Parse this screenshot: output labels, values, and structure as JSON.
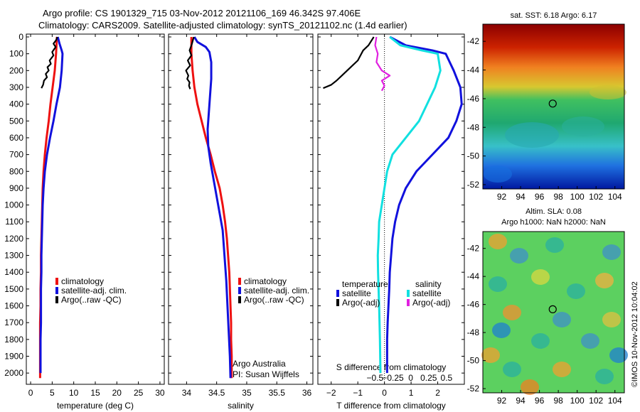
{
  "header": {
    "line1": "Argo profile: CS 1901329_715 03-Nov-2012 20121106_169 46.342S 97.406E",
    "line2": "Climatology: CARS2009. Satellite-adjusted climatology: synTS_20121102.nc (1.4d earlier)"
  },
  "colors": {
    "climatology": "#ee1111",
    "satellite": "#1111dd",
    "argo": "#000000",
    "salinity_satellite": "#11e0e0",
    "salinity_argo": "#e020e0"
  },
  "chart_data": [
    {
      "type": "line",
      "xlabel": "temperature (deg C)",
      "ylabel": "",
      "xlim": [
        -1,
        31
      ],
      "ylim": [
        2050,
        0
      ],
      "x_ticks": [
        0,
        5,
        10,
        15,
        20,
        25,
        30
      ],
      "y_ticks": [
        0,
        100,
        200,
        300,
        400,
        500,
        600,
        700,
        800,
        900,
        1000,
        1100,
        1200,
        1300,
        1400,
        1500,
        1600,
        1700,
        1800,
        1900,
        2000
      ],
      "legend": [
        "climatology",
        "satellite-adj. clim.",
        "Argo(..raw -QC)"
      ],
      "series": [
        {
          "name": "climatology",
          "x": [
            6.1,
            6.0,
            5.9,
            5.6,
            5.1,
            4.6,
            4.2,
            3.7,
            3.3,
            3.0,
            2.8,
            2.7,
            2.6,
            2.5,
            2.4,
            2.4,
            2.3,
            2.3,
            2.2,
            2.2,
            2.2,
            2.2
          ],
          "y": [
            0,
            50,
            100,
            200,
            300,
            400,
            500,
            600,
            700,
            800,
            900,
            1000,
            1100,
            1200,
            1300,
            1400,
            1500,
            1600,
            1700,
            1800,
            1900,
            2030
          ]
        },
        {
          "name": "satellite-adj. clim.",
          "x": [
            6.3,
            6.7,
            7.2,
            7.4,
            7.2,
            6.8,
            6.0,
            5.3,
            4.5,
            3.8,
            3.3,
            3.0,
            2.8,
            2.7,
            2.6,
            2.5,
            2.5,
            2.4,
            2.4,
            2.4,
            2.3,
            2.3,
            2.3
          ],
          "y": [
            0,
            40,
            80,
            100,
            200,
            300,
            400,
            500,
            600,
            700,
            800,
            900,
            1000,
            1100,
            1200,
            1300,
            1400,
            1500,
            1600,
            1700,
            1800,
            1900,
            2000
          ]
        },
        {
          "name": "Argo(..raw -QC)",
          "x": [
            6.2,
            5.9,
            5.3,
            5.8,
            5.0,
            5.3,
            4.4,
            4.7,
            3.9,
            4.2,
            3.5,
            3.8,
            3.1,
            2.9,
            2.5
          ],
          "y": [
            0,
            20,
            40,
            60,
            90,
            110,
            140,
            160,
            180,
            200,
            220,
            240,
            260,
            285,
            305
          ]
        }
      ]
    },
    {
      "type": "line",
      "xlabel": "salinity",
      "ylabel": "",
      "xlim": [
        33.7,
        36.1
      ],
      "ylim": [
        2050,
        0
      ],
      "x_ticks": [
        34,
        34.5,
        35,
        35.5,
        36
      ],
      "x_tick_labels": [
        "34",
        "34.5",
        "35",
        "35.5",
        "36"
      ],
      "legend": [
        "climatology",
        "satellite-adj. clim.",
        "Argo(..raw -QC)"
      ],
      "annotation": [
        "Argo Australia",
        "PI: Susan Wijffels"
      ],
      "series": [
        {
          "name": "climatology",
          "x": [
            34.08,
            34.08,
            34.1,
            34.13,
            34.18,
            34.25,
            34.32,
            34.4,
            34.47,
            34.55,
            34.6,
            34.64,
            34.67,
            34.69,
            34.71,
            34.72,
            34.73,
            34.74,
            34.74,
            34.75,
            34.75
          ],
          "y": [
            0,
            100,
            200,
            300,
            400,
            500,
            600,
            700,
            800,
            900,
            1000,
            1100,
            1200,
            1300,
            1400,
            1500,
            1600,
            1700,
            1800,
            1900,
            2030
          ]
        },
        {
          "name": "satellite-adj. clim.",
          "x": [
            34.13,
            34.18,
            34.32,
            34.38,
            34.41,
            34.41,
            34.39,
            34.37,
            34.35,
            34.36,
            34.4,
            34.45,
            34.5,
            34.55,
            34.6,
            34.63,
            34.66,
            34.68,
            34.7,
            34.72,
            34.73
          ],
          "y": [
            0,
            30,
            60,
            90,
            150,
            250,
            350,
            450,
            550,
            650,
            750,
            850,
            950,
            1050,
            1150,
            1300,
            1450,
            1600,
            1750,
            1900,
            2030
          ]
        },
        {
          "name": "Argo(..raw -QC)",
          "x": [
            34.12,
            34.09,
            34.05,
            34.08,
            34.02,
            34.06,
            33.99,
            34.03,
            34.01,
            34.05,
            34.04,
            34.06
          ],
          "y": [
            0,
            40,
            80,
            110,
            140,
            170,
            200,
            230,
            250,
            270,
            290,
            310
          ]
        }
      ]
    },
    {
      "type": "line",
      "xlabel": "T difference from climatology",
      "top_axis_label": "S difference from climatology",
      "xlim": [
        -2.5,
        3.0
      ],
      "ylim": [
        2050,
        0
      ],
      "x_ticks": [
        -2,
        -1,
        0,
        1,
        2
      ],
      "x_tick_labels": [
        "−2",
        "−1",
        "0",
        "1",
        "2"
      ],
      "s_ticks": [
        -0.5,
        -0.25,
        0,
        0.25,
        0.5
      ],
      "s_tick_labels": [
        "−0.5",
        "−0.25",
        "0",
        "0.25",
        "0.5"
      ],
      "legend_headers": [
        "temperature",
        "salinity"
      ],
      "legend": [
        "satellite",
        "Argo(-adj)",
        "satellite",
        "Argo(-adj)"
      ],
      "series": [
        {
          "name": "satellite",
          "group": "temperature",
          "x": [
            0.2,
            0.8,
            1.8,
            2.3,
            2.6,
            2.85,
            2.9,
            2.7,
            2.4,
            1.8,
            1.2,
            0.8,
            0.55,
            0.4,
            0.3,
            0.25,
            0.2,
            0.18,
            0.15,
            0.12,
            0.1,
            0.1
          ],
          "y": [
            0,
            50,
            80,
            100,
            200,
            300,
            400,
            500,
            600,
            700,
            800,
            900,
            1000,
            1100,
            1200,
            1300,
            1400,
            1500,
            1600,
            1700,
            1800,
            2000
          ]
        },
        {
          "name": "Argo(-adj)",
          "group": "temperature",
          "x": [
            -0.4,
            -0.6,
            -0.8,
            -0.9,
            -1.0,
            -1.2,
            -1.4,
            -1.6,
            -1.8,
            -2.0,
            -2.3
          ],
          "y": [
            0,
            50,
            80,
            110,
            140,
            170,
            200,
            230,
            260,
            285,
            305
          ]
        },
        {
          "name": "satellite",
          "group": "salinity",
          "x": [
            0.2,
            0.6,
            1.4,
            2.0,
            2.1,
            1.9,
            1.6,
            1.3,
            0.8,
            0.3,
            0.1,
            0.0,
            -0.1,
            -0.2,
            -0.22,
            -0.25,
            -0.24,
            -0.2,
            -0.17,
            -0.15
          ],
          "y": [
            0,
            50,
            80,
            100,
            200,
            300,
            400,
            500,
            600,
            700,
            800,
            900,
            1000,
            1100,
            1200,
            1300,
            1400,
            1600,
            1800,
            2000
          ]
        },
        {
          "name": "Argo(-adj)",
          "group": "salinity",
          "x": [
            -0.3,
            -0.35,
            -0.25,
            -0.3,
            -0.1,
            0.2,
            -0.1,
            0.0,
            -0.1
          ],
          "y": [
            0,
            50,
            100,
            150,
            200,
            230,
            260,
            290,
            320
          ]
        }
      ]
    }
  ],
  "maps": {
    "sst_caption": "sat. SST: 6.18  Argo: 6.17",
    "sla_caption_1": "Altim. SLA: 0.08",
    "sla_caption_2": "Argo h1000: NaN h2000: NaN",
    "lat_ticks": [
      -42,
      -44,
      -46,
      -48,
      -50,
      -52
    ],
    "lon_ticks": [
      92,
      94,
      96,
      98,
      100,
      102,
      104
    ],
    "marker": {
      "lon": 97.406,
      "lat": -46.342
    }
  },
  "footer": {
    "imos": "©IMOS 10-Nov-2012 10:04:02"
  }
}
